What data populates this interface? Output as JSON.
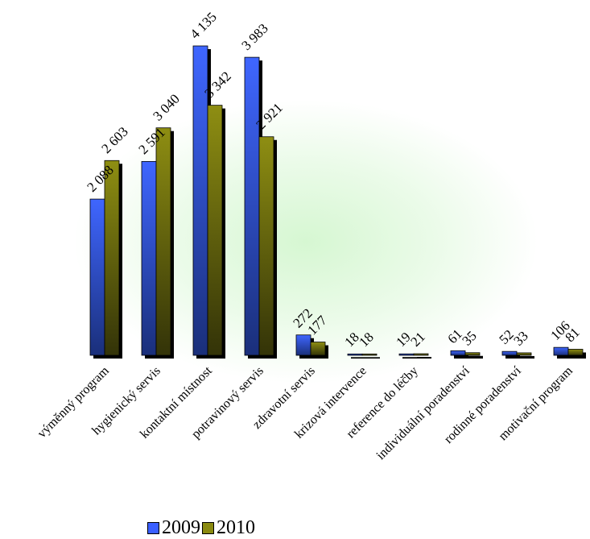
{
  "chart_data": {
    "type": "bar",
    "categories": [
      "výměnný program",
      "hygienický servis",
      "kontaktní místnost",
      "potravinový servis",
      "zdravotní servis",
      "krizová intervence",
      "reference do léčby",
      "individuální poradenství",
      "rodinné poradenství",
      "motivační program"
    ],
    "series": [
      {
        "name": "2009",
        "color": "#3a5fff",
        "values": [
          2088,
          2591,
          4135,
          3983,
          272,
          18,
          19,
          61,
          52,
          106
        ],
        "labels": [
          "2 088",
          "2 591",
          "4 135",
          "3 983",
          "272",
          "18",
          "19",
          "61",
          "52",
          "106"
        ]
      },
      {
        "name": "2010",
        "color": "#8a8a10",
        "values": [
          2603,
          3040,
          3342,
          2921,
          177,
          18,
          21,
          35,
          33,
          81
        ],
        "labels": [
          "2 603",
          "3 040",
          "3 342",
          "2 921",
          "177",
          "18",
          "21",
          "35",
          "33",
          "81"
        ]
      }
    ],
    "ylim": [
      0,
      4135
    ],
    "grid": false,
    "legend_position": "bottom"
  }
}
